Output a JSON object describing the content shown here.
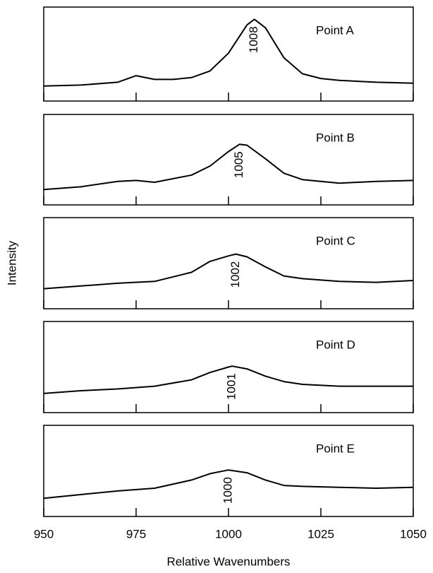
{
  "chart_data": [
    {
      "type": "line",
      "title": "Point A",
      "peak_label": "1008",
      "x": [
        950,
        960,
        970,
        975,
        980,
        985,
        990,
        995,
        1000,
        1005,
        1007,
        1010,
        1015,
        1020,
        1025,
        1030,
        1040,
        1050
      ],
      "values": [
        0.16,
        0.17,
        0.2,
        0.27,
        0.23,
        0.23,
        0.25,
        0.32,
        0.51,
        0.81,
        0.87,
        0.78,
        0.46,
        0.29,
        0.24,
        0.22,
        0.2,
        0.19
      ],
      "color": "#000000",
      "xlim": [
        950,
        1050
      ],
      "ylim": [
        0,
        1
      ],
      "xticks": [
        950,
        975,
        1000,
        1025,
        1050
      ],
      "show_xtick_labels": false
    },
    {
      "type": "line",
      "title": "Point B",
      "peak_label": "1005",
      "x": [
        950,
        960,
        970,
        975,
        980,
        990,
        995,
        1000,
        1003,
        1005,
        1010,
        1015,
        1020,
        1030,
        1040,
        1050
      ],
      "values": [
        0.17,
        0.2,
        0.26,
        0.27,
        0.25,
        0.33,
        0.43,
        0.59,
        0.67,
        0.66,
        0.51,
        0.35,
        0.28,
        0.24,
        0.26,
        0.27
      ],
      "color": "#000000",
      "xlim": [
        950,
        1050
      ],
      "ylim": [
        0,
        1
      ],
      "xticks": [
        950,
        975,
        1000,
        1025,
        1050
      ],
      "show_xtick_labels": false
    },
    {
      "type": "line",
      "title": "Point C",
      "peak_label": "1002",
      "ylabel": "Intensity",
      "x": [
        950,
        960,
        970,
        980,
        990,
        995,
        1000,
        1002,
        1005,
        1010,
        1015,
        1020,
        1030,
        1040,
        1050
      ],
      "values": [
        0.22,
        0.25,
        0.28,
        0.3,
        0.4,
        0.52,
        0.58,
        0.6,
        0.57,
        0.46,
        0.36,
        0.33,
        0.3,
        0.29,
        0.31
      ],
      "color": "#000000",
      "xlim": [
        950,
        1050
      ],
      "ylim": [
        0,
        1
      ],
      "xticks": [
        950,
        975,
        1000,
        1025,
        1050
      ],
      "show_xtick_labels": false
    },
    {
      "type": "line",
      "title": "Point D",
      "peak_label": "1001",
      "x": [
        950,
        960,
        970,
        980,
        990,
        995,
        1000,
        1001,
        1005,
        1010,
        1015,
        1020,
        1030,
        1040,
        1050
      ],
      "values": [
        0.21,
        0.24,
        0.26,
        0.29,
        0.36,
        0.44,
        0.5,
        0.51,
        0.48,
        0.4,
        0.34,
        0.31,
        0.29,
        0.29,
        0.29
      ],
      "color": "#000000",
      "xlim": [
        950,
        1050
      ],
      "ylim": [
        0,
        1
      ],
      "xticks": [
        950,
        975,
        1000,
        1025,
        1050
      ],
      "show_xtick_labels": false
    },
    {
      "type": "line",
      "title": "Point E",
      "peak_label": "1000",
      "xlabel": "Relative Wavenumbers",
      "x": [
        950,
        960,
        970,
        980,
        990,
        995,
        1000,
        1005,
        1010,
        1015,
        1020,
        1030,
        1040,
        1050
      ],
      "values": [
        0.2,
        0.24,
        0.28,
        0.31,
        0.4,
        0.47,
        0.51,
        0.48,
        0.4,
        0.34,
        0.33,
        0.32,
        0.31,
        0.32
      ],
      "color": "#000000",
      "xlim": [
        950,
        1050
      ],
      "ylim": [
        0,
        1
      ],
      "xticks": [
        950,
        975,
        1000,
        1025,
        1050
      ],
      "show_xtick_labels": true
    }
  ]
}
